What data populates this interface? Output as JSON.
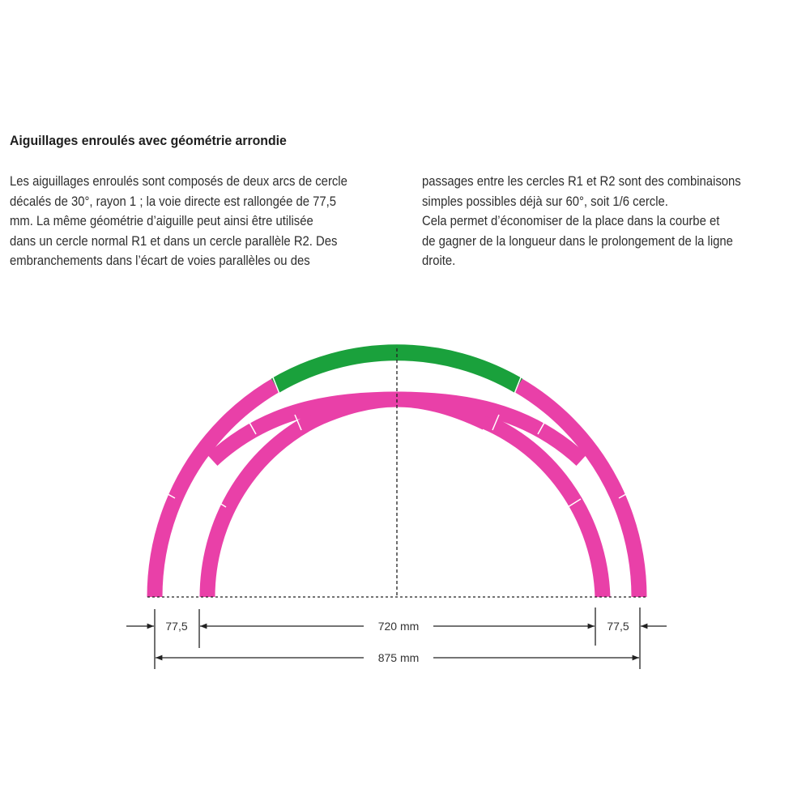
{
  "title": "Aiguillages enroulés avec géométrie arrondie",
  "column1_lines": [
    "Les aiguillages enroulés sont composés de deux arcs de cercle",
    "décalés de 30°, rayon 1 ; la voie directe est rallongée de 77,5",
    "mm. La même géométrie d’aiguille peut ainsi être utilisée",
    "dans un cercle normal R1 et dans un cercle parallèle R2. Des",
    "embranchements dans l’écart de voies parallèles ou des"
  ],
  "column2_lines": [
    "passages entre les cercles R1 et R2 sont des combinaisons",
    "simples possibles déjà sur 60°, soit 1/6 cercle.",
    "Cela permet d’économiser de la place dans la courbe et",
    "de gagner de la longueur dans le prolongement de la ligne",
    "droite."
  ],
  "diagram": {
    "track_color": "#e940a8",
    "highlight_color": "#1aa13c",
    "dim_left": "77,5",
    "dim_middle": "720 mm",
    "dim_right": "77,5",
    "dim_total": "875 mm"
  }
}
